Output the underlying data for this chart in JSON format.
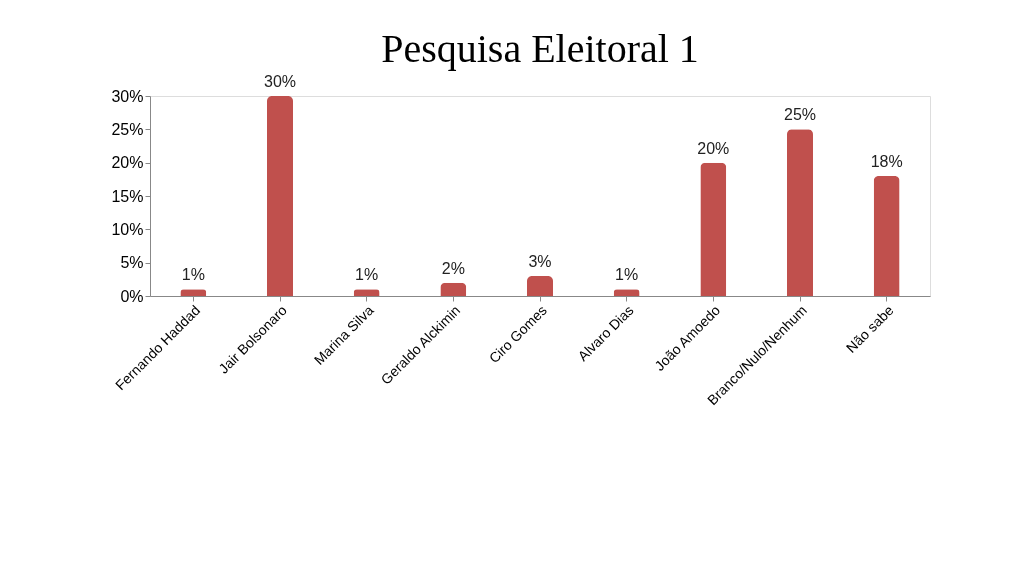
{
  "chart_data": {
    "type": "bar",
    "title": "Pesquisa Eleitoral  1",
    "categories": [
      "Fernando Haddad",
      "Jair Bolsonaro",
      "Marina Silva",
      "Geraldo Alckimin",
      "Ciro Gomes",
      "Alvaro Dias",
      "João Amoedo",
      "Branco/Nulo/Nenhum",
      "Não sabe"
    ],
    "values": [
      1,
      30,
      1,
      2,
      3,
      1,
      20,
      25,
      18
    ],
    "value_labels": [
      "1%",
      "30%",
      "1%",
      "2%",
      "3%",
      "1%",
      "20%",
      "25%",
      "18%"
    ],
    "color": "#c0504d",
    "ylim": [
      0,
      30
    ],
    "yticks": [
      {
        "value": 0,
        "label": "0%"
      },
      {
        "value": 5,
        "label": "5%"
      },
      {
        "value": 10,
        "label": "10%"
      },
      {
        "value": 15,
        "label": "15%"
      },
      {
        "value": 20,
        "label": "20%"
      },
      {
        "value": 25,
        "label": "25%"
      },
      {
        "value": 30,
        "label": "30%"
      }
    ],
    "grid": false
  }
}
